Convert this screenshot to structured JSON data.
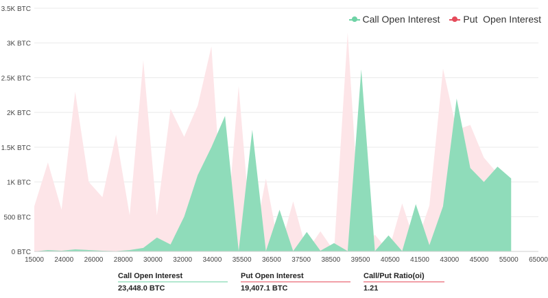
{
  "colors": {
    "call": "#6fd3a6",
    "call_area": "#8fdcba",
    "put": "#e54b5b",
    "put_area": "#fde5e8",
    "grid": "#e9e9e9",
    "axis_text": "#444444"
  },
  "legend": {
    "call_label": "Call Open Interest",
    "put_label": "Put  Open Interest"
  },
  "chart_data": {
    "type": "area",
    "x": [
      "15000",
      "22000",
      "23000",
      "24000",
      "25000",
      "26000",
      "27000",
      "28000",
      "29000",
      "29500",
      "30000",
      "31000",
      "32000",
      "33000",
      "34000",
      "34500",
      "35000",
      "35500",
      "36000",
      "36500",
      "37000",
      "37500",
      "38000",
      "38500",
      "39000",
      "39500",
      "40000",
      "40500",
      "41000",
      "41500",
      "42000",
      "43000",
      "44000",
      "45000",
      "50000",
      "55000",
      "60000",
      "65000"
    ],
    "x_tick_labels": [
      "15000",
      "24000",
      "26000",
      "28000",
      "30000",
      "32000",
      "34000",
      "35500",
      "36500",
      "37500",
      "38500",
      "39500",
      "40500",
      "41500",
      "43000",
      "45000",
      "55000",
      "65000"
    ],
    "series": [
      {
        "name": "Call Open Interest",
        "values": [
          0,
          20,
          10,
          30,
          20,
          10,
          5,
          20,
          50,
          200,
          100,
          500,
          1100,
          1500,
          1950,
          5,
          1750,
          5,
          600,
          5,
          280,
          10,
          120,
          5,
          2620,
          5,
          230,
          5,
          680,
          90,
          650,
          2200,
          1200,
          1000,
          1220,
          1050,
          null,
          null
        ]
      },
      {
        "name": "Put  Open Interest",
        "values": [
          650,
          1280,
          600,
          2300,
          1000,
          780,
          1680,
          520,
          2750,
          520,
          2050,
          1650,
          2100,
          2950,
          5,
          2380,
          5,
          1050,
          5,
          720,
          5,
          290,
          5,
          3150,
          5,
          240,
          5,
          690,
          90,
          660,
          2630,
          1750,
          1820,
          1350,
          1120,
          null,
          null,
          null
        ]
      }
    ],
    "y_ticks": [
      "0 BTC",
      "500 BTC",
      "1K BTC",
      "1.5K BTC",
      "2K BTC",
      "2.5K BTC",
      "3K BTC",
      "3.5K BTC"
    ],
    "ylim": [
      0,
      3500
    ],
    "grid": true,
    "legend_position": "top-right"
  },
  "stats": [
    {
      "label": "Call Open Interest",
      "value": "23,448.0 BTC",
      "color": "#6fd3a6"
    },
    {
      "label": "Put Open Interest",
      "value": "19,407.1 BTC",
      "color": "#e54b5b"
    },
    {
      "label": "Call/Put Ratio(oi)",
      "value": "1.21",
      "color": "#e54b5b"
    }
  ]
}
